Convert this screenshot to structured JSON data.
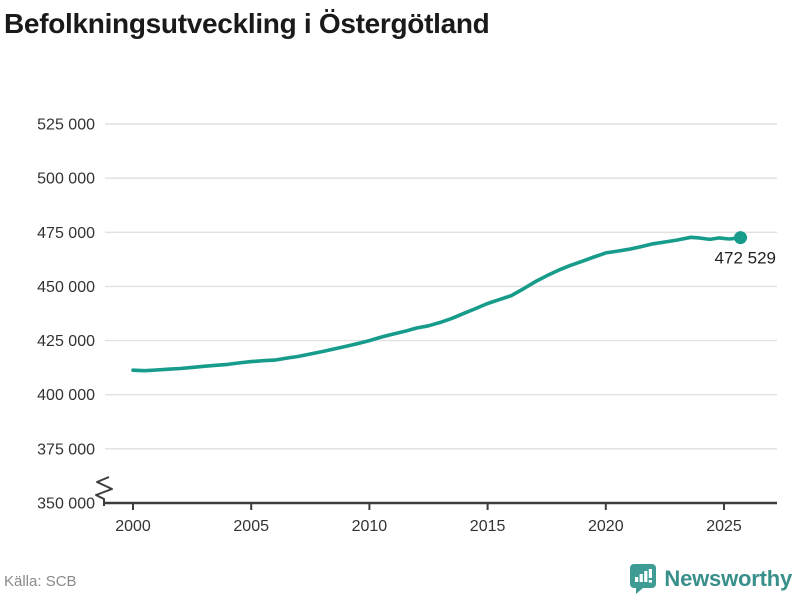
{
  "title": "Befolkningsutveckling i Östergötland",
  "source": "Källa: SCB",
  "branding": {
    "name": "Newsworthy",
    "icon": "newsworthy-speech-bubble-chart-icon"
  },
  "colors": {
    "line": "#179c8b",
    "marker": "#179c8b",
    "grid": "#e1e1e1",
    "axis": "#3d3d3d",
    "tick_label": "#333333",
    "end_label": "#222222",
    "title": "#1a1a1a",
    "source_text": "#8a8a8a",
    "brand": "#39908a",
    "brand_icon": "#3e9c94"
  },
  "chart_data": {
    "type": "line",
    "title": "Befolkningsutveckling i Östergötland",
    "xlabel": "",
    "ylabel": "",
    "legend": "none",
    "grid": "horizontal",
    "y_axis_break": true,
    "xlim": [
      1998.8,
      2027.2
    ],
    "ylim": [
      350000,
      525000
    ],
    "x_ticks": [
      2000,
      2005,
      2010,
      2015,
      2020,
      2025
    ],
    "x_tick_labels": [
      "2000",
      "2005",
      "2010",
      "2015",
      "2020",
      "2025"
    ],
    "y_ticks": [
      350000,
      375000,
      400000,
      425000,
      450000,
      475000,
      500000,
      525000
    ],
    "y_tick_labels": [
      "350 000",
      "375 000",
      "400 000",
      "425 000",
      "450 000",
      "475 000",
      "500 000",
      "525 000"
    ],
    "end_label": "472 529",
    "latest_value": 472529,
    "series": [
      {
        "name": "Befolkning i Östergötland",
        "points": [
          [
            2000.0,
            411300
          ],
          [
            2000.5,
            411100
          ],
          [
            2001.0,
            411400
          ],
          [
            2001.5,
            411800
          ],
          [
            2002.0,
            412100
          ],
          [
            2002.5,
            412600
          ],
          [
            2003.0,
            413100
          ],
          [
            2003.5,
            413600
          ],
          [
            2004.0,
            414000
          ],
          [
            2004.5,
            414700
          ],
          [
            2005.0,
            415300
          ],
          [
            2005.5,
            415700
          ],
          [
            2006.0,
            416000
          ],
          [
            2006.5,
            416900
          ],
          [
            2007.0,
            417700
          ],
          [
            2007.5,
            418800
          ],
          [
            2008.0,
            419900
          ],
          [
            2008.5,
            421100
          ],
          [
            2009.0,
            422300
          ],
          [
            2009.5,
            423600
          ],
          [
            2010.0,
            425000
          ],
          [
            2010.5,
            426600
          ],
          [
            2011.0,
            428000
          ],
          [
            2011.5,
            429300
          ],
          [
            2012.0,
            430800
          ],
          [
            2012.5,
            431800
          ],
          [
            2013.0,
            433400
          ],
          [
            2013.5,
            435300
          ],
          [
            2014.0,
            437600
          ],
          [
            2014.5,
            439800
          ],
          [
            2015.0,
            442100
          ],
          [
            2015.5,
            443900
          ],
          [
            2016.0,
            445700
          ],
          [
            2016.5,
            448800
          ],
          [
            2017.0,
            452100
          ],
          [
            2017.5,
            454900
          ],
          [
            2018.0,
            457500
          ],
          [
            2018.5,
            459700
          ],
          [
            2019.0,
            461600
          ],
          [
            2019.5,
            463600
          ],
          [
            2020.0,
            465500
          ],
          [
            2020.5,
            466300
          ],
          [
            2021.0,
            467200
          ],
          [
            2021.5,
            468400
          ],
          [
            2022.0,
            469700
          ],
          [
            2022.5,
            470500
          ],
          [
            2023.0,
            471400
          ],
          [
            2023.6,
            472700
          ],
          [
            2024.0,
            472300
          ],
          [
            2024.4,
            471700
          ],
          [
            2024.8,
            472400
          ],
          [
            2025.2,
            471900
          ],
          [
            2025.5,
            472200
          ],
          [
            2025.7,
            472529
          ]
        ]
      }
    ]
  }
}
